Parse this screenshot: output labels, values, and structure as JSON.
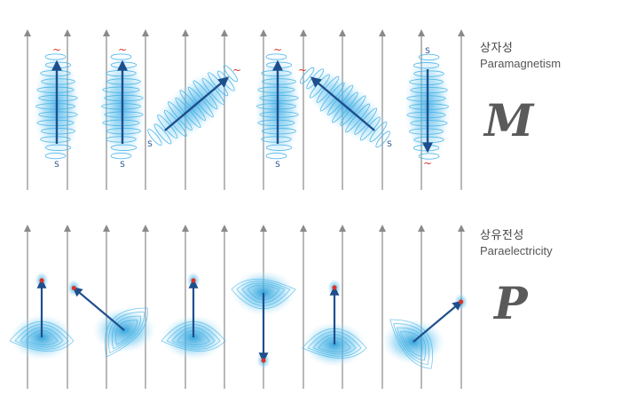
{
  "sections": {
    "magnetic": {
      "title_ko": "상자성",
      "title_en": "Paramagnetism",
      "symbol": "M",
      "north_marker": "~",
      "south_marker": "S",
      "dipoles": [
        {
          "direction": "up"
        },
        {
          "direction": "up"
        },
        {
          "direction": "up-right"
        },
        {
          "direction": "up"
        },
        {
          "direction": "up-left"
        },
        {
          "direction": "down"
        }
      ]
    },
    "electric": {
      "title_ko": "상유전성",
      "title_en": "Paraelectricity",
      "symbol": "P",
      "dipoles": [
        {
          "direction": "up"
        },
        {
          "direction": "up-left"
        },
        {
          "direction": "up"
        },
        {
          "direction": "down"
        },
        {
          "direction": "up"
        },
        {
          "direction": "up-right"
        }
      ]
    }
  },
  "colors": {
    "field_line": "#8a8a8a",
    "arrow": "#1f4e8c",
    "cloud": "#3fb0e6",
    "cloud_light": "#a9dcf5",
    "north_marker": "#d9342b",
    "south_marker": "#1f4e8c",
    "charge": "#d9342b"
  }
}
